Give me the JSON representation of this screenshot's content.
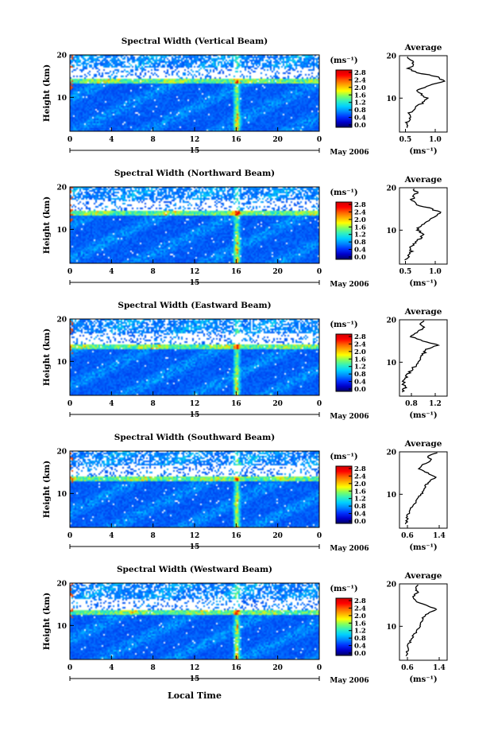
{
  "figure": {
    "time_axis_label": "Local Time",
    "date_label": "May 2006",
    "day_label": "15"
  },
  "colorbar": {
    "unit_label": "(ms⁻¹)",
    "ticks": [
      "0.0",
      "0.4",
      "0.8",
      "1.2",
      "1.6",
      "2.0",
      "2.4",
      "2.8"
    ],
    "colors": [
      "#000066",
      "#0000cc",
      "#0033ff",
      "#0088ff",
      "#00d0ff",
      "#30f0c0",
      "#80ff60",
      "#ffff00",
      "#ffb000",
      "#ff6000",
      "#ff0000",
      "#d00000"
    ]
  },
  "chart_data": [
    {
      "type": "heatmap",
      "title": "Spectral Width (Vertical Beam)",
      "ylabel": "Height (km)",
      "x_ticks": [
        "0",
        "4",
        "8",
        "12",
        "16",
        "20",
        "0"
      ],
      "y_ticks": [
        "10",
        "20"
      ],
      "xlim": [
        0,
        24
      ],
      "ylim": [
        2,
        20
      ],
      "zlim": [
        0.0,
        2.8
      ],
      "profile": {
        "title": "Average",
        "xlabel": "(ms⁻¹)",
        "x_ticks": [
          "0.5",
          "1.0"
        ],
        "xlim": [
          0.4,
          1.2
        ],
        "heights": [
          3,
          4,
          5,
          6,
          7,
          8,
          9,
          10,
          11,
          12,
          13,
          14,
          15,
          16,
          17,
          18,
          19,
          20
        ],
        "values": [
          0.55,
          0.5,
          0.6,
          0.55,
          0.6,
          0.7,
          0.8,
          0.85,
          0.75,
          0.7,
          0.9,
          1.15,
          1.05,
          0.7,
          0.55,
          0.65,
          0.6,
          0.5
        ]
      }
    },
    {
      "type": "heatmap",
      "title": "Spectral Width (Northward Beam)",
      "ylabel": "Height (km)",
      "x_ticks": [
        "0",
        "4",
        "8",
        "12",
        "16",
        "20",
        "0"
      ],
      "y_ticks": [
        "10",
        "20"
      ],
      "xlim": [
        0,
        24
      ],
      "ylim": [
        2,
        20
      ],
      "zlim": [
        0.0,
        2.8
      ],
      "profile": {
        "title": "Average",
        "xlabel": "(ms⁻¹)",
        "x_ticks": [
          "0.5",
          "1.0"
        ],
        "xlim": [
          0.4,
          1.2
        ],
        "heights": [
          3,
          4,
          5,
          6,
          7,
          8,
          9,
          10,
          11,
          12,
          13,
          14,
          15,
          16,
          17,
          18,
          19,
          20
        ],
        "values": [
          0.5,
          0.55,
          0.6,
          0.6,
          0.65,
          0.75,
          0.8,
          0.7,
          0.75,
          0.85,
          0.95,
          1.1,
          0.95,
          0.7,
          0.6,
          0.65,
          0.7,
          0.6
        ]
      }
    },
    {
      "type": "heatmap",
      "title": "Spectral Width (Eastward Beam)",
      "ylabel": "Height (km)",
      "x_ticks": [
        "0",
        "4",
        "8",
        "12",
        "16",
        "20",
        "0"
      ],
      "y_ticks": [
        "10",
        "20"
      ],
      "xlim": [
        0,
        24
      ],
      "ylim": [
        2,
        20
      ],
      "zlim": [
        0.0,
        2.8
      ],
      "profile": {
        "title": "Average",
        "xlabel": "(ms⁻¹)",
        "x_ticks": [
          "0.8",
          "1.2"
        ],
        "xlim": [
          0.6,
          1.4
        ],
        "heights": [
          3,
          4,
          5,
          6,
          7,
          8,
          9,
          10,
          11,
          12,
          13,
          14,
          15,
          16,
          17,
          18,
          19,
          20
        ],
        "values": [
          0.65,
          0.7,
          0.65,
          0.7,
          0.72,
          0.8,
          0.85,
          0.9,
          0.95,
          1.0,
          1.05,
          1.25,
          1.0,
          0.8,
          0.9,
          1.0,
          0.95,
          1.05
        ]
      }
    },
    {
      "type": "heatmap",
      "title": "Spectral Width (Southward Beam)",
      "ylabel": "Height (km)",
      "x_ticks": [
        "0",
        "4",
        "8",
        "12",
        "16",
        "20",
        "0"
      ],
      "y_ticks": [
        "10",
        "20"
      ],
      "xlim": [
        0,
        24
      ],
      "ylim": [
        2,
        20
      ],
      "zlim": [
        0.0,
        2.8
      ],
      "profile": {
        "title": "Average",
        "xlabel": "(ms⁻¹)",
        "x_ticks": [
          "0.6",
          "1.4"
        ],
        "xlim": [
          0.4,
          1.6
        ],
        "heights": [
          3,
          4,
          5,
          6,
          7,
          8,
          9,
          10,
          11,
          12,
          13,
          14,
          15,
          16,
          17,
          18,
          19,
          20
        ],
        "values": [
          0.55,
          0.6,
          0.6,
          0.65,
          0.7,
          0.8,
          0.85,
          0.95,
          1.0,
          1.05,
          1.15,
          1.3,
          1.1,
          0.9,
          1.0,
          1.2,
          1.1,
          1.4
        ]
      }
    },
    {
      "type": "heatmap",
      "title": "Spectral Width (Westward Beam)",
      "ylabel": "Height (km)",
      "x_ticks": [
        "0",
        "4",
        "8",
        "12",
        "16",
        "20",
        "0"
      ],
      "y_ticks": [
        "10",
        "20"
      ],
      "xlim": [
        0,
        24
      ],
      "ylim": [
        2,
        20
      ],
      "zlim": [
        0.0,
        2.8
      ],
      "profile": {
        "title": "Average",
        "xlabel": "(ms⁻¹)",
        "x_ticks": [
          "0.6",
          "1.4"
        ],
        "xlim": [
          0.4,
          1.6
        ],
        "heights": [
          3,
          4,
          5,
          6,
          7,
          8,
          9,
          10,
          11,
          12,
          13,
          14,
          15,
          16,
          17,
          18,
          19,
          20
        ],
        "values": [
          0.55,
          0.6,
          0.6,
          0.65,
          0.7,
          0.75,
          0.85,
          0.9,
          0.95,
          1.0,
          1.1,
          1.35,
          1.05,
          0.8,
          0.75,
          0.85,
          0.8,
          0.9
        ]
      }
    }
  ]
}
